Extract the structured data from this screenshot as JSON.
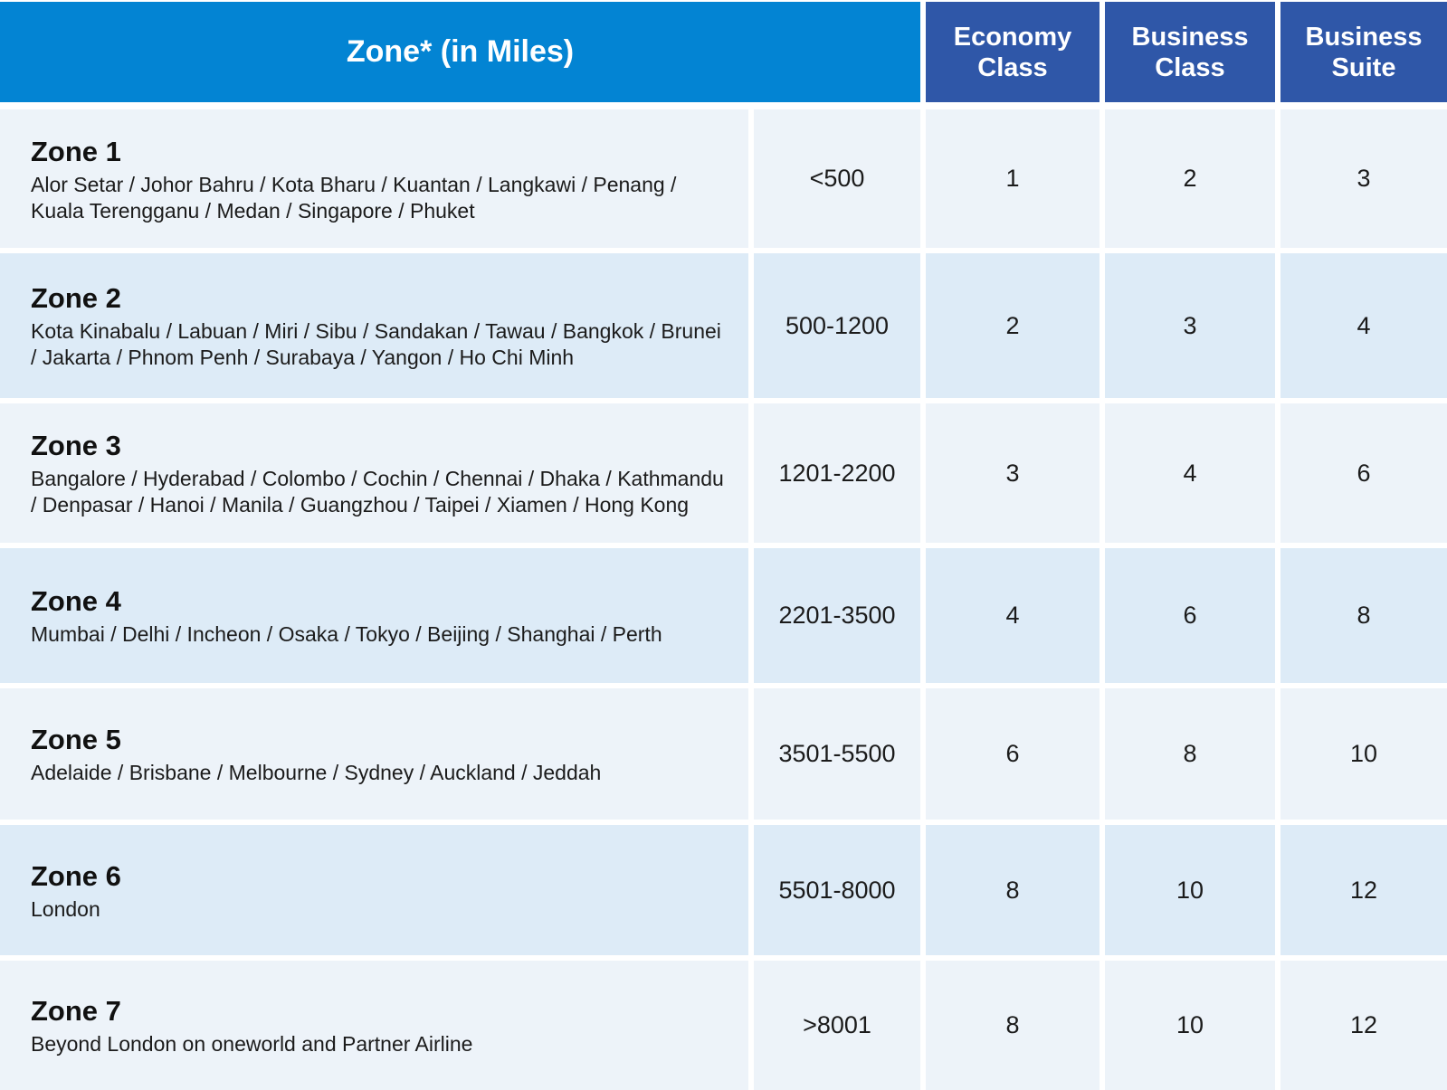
{
  "header": {
    "zone_label": "Zone* (in Miles)",
    "classes": [
      {
        "line1": "Economy",
        "line2": "Class"
      },
      {
        "line1": "Business",
        "line2": "Class"
      },
      {
        "line1": "Business",
        "line2": "Suite"
      }
    ]
  },
  "rows": [
    {
      "zone": "Zone 1",
      "cities": "Alor Setar / Johor Bahru / Kota Bharu / Kuantan / Langkawi / Penang / Kuala Terengganu / Medan / Singapore / Phuket",
      "miles": "<500",
      "economy": "1",
      "business_class": "2",
      "business_suite": "3"
    },
    {
      "zone": "Zone 2",
      "cities": "Kota Kinabalu / Labuan / Miri / Sibu / Sandakan / Tawau / Bangkok / Brunei / Jakarta / Phnom Penh / Surabaya / Yangon / Ho Chi Minh",
      "miles": "500-1200",
      "economy": "2",
      "business_class": "3",
      "business_suite": "4"
    },
    {
      "zone": "Zone 3",
      "cities": "Bangalore / Hyderabad / Colombo / Cochin / Chennai / Dhaka / Kathmandu / Denpasar / Hanoi / Manila / Guangzhou / Taipei / Xiamen / Hong Kong",
      "miles": "1201-2200",
      "economy": "3",
      "business_class": "4",
      "business_suite": "6"
    },
    {
      "zone": "Zone 4",
      "cities": "Mumbai / Delhi / Incheon / Osaka / Tokyo / Beijing / Shanghai / Perth",
      "miles": "2201-3500",
      "economy": "4",
      "business_class": "6",
      "business_suite": "8"
    },
    {
      "zone": "Zone 5",
      "cities": "Adelaide / Brisbane / Melbourne / Sydney / Auckland / Jeddah",
      "miles": "3501-5500",
      "economy": "6",
      "business_class": "8",
      "business_suite": "10"
    },
    {
      "zone": "Zone 6",
      "cities": "London",
      "miles": "5501-8000",
      "economy": "8",
      "business_class": "10",
      "business_suite": "12"
    },
    {
      "zone": "Zone 7",
      "cities": "Beyond London on oneworld and Partner Airline",
      "miles": ">8001",
      "economy": "8",
      "business_class": "10",
      "business_suite": "12"
    }
  ]
}
